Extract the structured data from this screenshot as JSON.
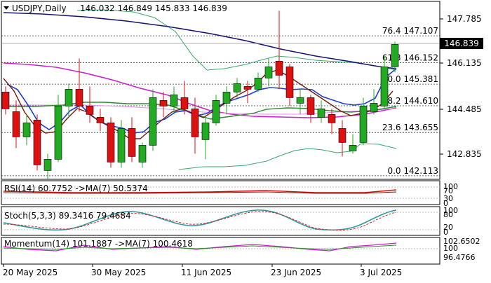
{
  "header": {
    "symbol": "USDJPY,Daily",
    "values": "146.032 146.849 145.833 146.839"
  },
  "price_axis": {
    "ticks": [
      "147.785",
      "146.135",
      "144.485",
      "142.835"
    ],
    "current_price": "146.839"
  },
  "fib_levels": [
    {
      "label": "76.4 147.107",
      "value": 147.107
    },
    {
      "label": "61.8 146.152",
      "value": 146.152
    },
    {
      "label": "50.0 145.381",
      "value": 145.381
    },
    {
      "label": "38.2 144.610",
      "value": 144.61
    },
    {
      "label": "23.6 143.655",
      "value": 143.655
    },
    {
      "label": "0.0 142.113",
      "value": 142.113
    }
  ],
  "date_axis": {
    "labels": [
      "20 May 2025",
      "30 May 2025",
      "11 Jun 2025",
      "23 Jun 2025",
      "3 Jul 2025"
    ]
  },
  "panels": {
    "rsi": {
      "label": "RSI(14) 60.7752  ->MA(7) 50.5374",
      "ticks": [
        "100",
        "70",
        "30",
        "0"
      ]
    },
    "stoch": {
      "label": "Stoch(5,3,3) 89.3416 79.4684",
      "ticks": [
        "100",
        "80",
        "20",
        "0"
      ]
    },
    "momentum": {
      "label": "Momentum(14) 101.1887  ->MA(7) 100.4618",
      "ticks": [
        "102.6502",
        "100",
        "96.4766"
      ]
    }
  },
  "colors": {
    "bull": "#22aa22",
    "bear": "#dd1111",
    "sma_fast": "#1f3fcf",
    "sma_dark": "#7a1a0a",
    "sma_mid": "#2e8b2e",
    "sma_magenta": "#cc22cc",
    "sma_navy": "#151570",
    "bollinger": "#3aa86a",
    "fib": "#333333"
  },
  "chart_data": {
    "type": "candlestick",
    "title": "USDJPY,Daily",
    "ylim": [
      142.11,
      148.2
    ],
    "candles": [
      {
        "o": 145.1,
        "h": 145.3,
        "l": 144.3,
        "c": 144.5
      },
      {
        "o": 144.4,
        "h": 144.8,
        "l": 143.1,
        "c": 143.5
      },
      {
        "o": 143.5,
        "h": 144.3,
        "l": 143.2,
        "c": 144.0
      },
      {
        "o": 144.1,
        "h": 144.3,
        "l": 142.3,
        "c": 142.5
      },
      {
        "o": 142.3,
        "h": 142.9,
        "l": 142.0,
        "c": 142.7
      },
      {
        "o": 142.7,
        "h": 145.0,
        "l": 142.6,
        "c": 144.6
      },
      {
        "o": 144.6,
        "h": 145.4,
        "l": 144.2,
        "c": 145.2
      },
      {
        "o": 145.2,
        "h": 146.3,
        "l": 144.4,
        "c": 144.6
      },
      {
        "o": 144.6,
        "h": 145.3,
        "l": 144.0,
        "c": 144.3
      },
      {
        "o": 144.2,
        "h": 144.5,
        "l": 143.7,
        "c": 144.0
      },
      {
        "o": 144.0,
        "h": 144.2,
        "l": 142.4,
        "c": 142.6
      },
      {
        "o": 142.6,
        "h": 144.1,
        "l": 142.4,
        "c": 143.8
      },
      {
        "o": 143.8,
        "h": 144.2,
        "l": 142.6,
        "c": 142.8
      },
      {
        "o": 142.6,
        "h": 143.3,
        "l": 142.4,
        "c": 143.2
      },
      {
        "o": 143.2,
        "h": 145.2,
        "l": 143.0,
        "c": 144.9
      },
      {
        "o": 144.8,
        "h": 145.1,
        "l": 144.2,
        "c": 144.6
      },
      {
        "o": 144.6,
        "h": 145.3,
        "l": 144.3,
        "c": 145.0
      },
      {
        "o": 144.9,
        "h": 145.5,
        "l": 144.3,
        "c": 144.5
      },
      {
        "o": 144.5,
        "h": 144.9,
        "l": 142.9,
        "c": 143.5
      },
      {
        "o": 143.4,
        "h": 144.2,
        "l": 142.7,
        "c": 144.0
      },
      {
        "o": 144.0,
        "h": 145.0,
        "l": 143.9,
        "c": 144.8
      },
      {
        "o": 144.7,
        "h": 145.3,
        "l": 144.3,
        "c": 145.1
      },
      {
        "o": 145.1,
        "h": 145.6,
        "l": 144.9,
        "c": 145.4
      },
      {
        "o": 145.3,
        "h": 145.5,
        "l": 144.7,
        "c": 145.2
      },
      {
        "o": 145.2,
        "h": 145.8,
        "l": 145.1,
        "c": 145.6
      },
      {
        "o": 145.6,
        "h": 146.3,
        "l": 145.3,
        "c": 146.0
      },
      {
        "o": 146.2,
        "h": 148.0,
        "l": 145.2,
        "c": 145.7
      },
      {
        "o": 146.0,
        "h": 146.1,
        "l": 144.6,
        "c": 144.9
      },
      {
        "o": 144.7,
        "h": 145.2,
        "l": 144.3,
        "c": 144.9
      },
      {
        "o": 144.9,
        "h": 145.0,
        "l": 144.0,
        "c": 144.3
      },
      {
        "o": 144.2,
        "h": 144.8,
        "l": 144.0,
        "c": 144.5
      },
      {
        "o": 144.3,
        "h": 144.5,
        "l": 143.6,
        "c": 144.0
      },
      {
        "o": 143.8,
        "h": 144.1,
        "l": 142.8,
        "c": 143.3
      },
      {
        "o": 143.0,
        "h": 143.6,
        "l": 142.9,
        "c": 143.2
      },
      {
        "o": 143.3,
        "h": 144.9,
        "l": 143.2,
        "c": 144.6
      },
      {
        "o": 144.4,
        "h": 145.2,
        "l": 144.3,
        "c": 144.7
      },
      {
        "o": 144.6,
        "h": 146.4,
        "l": 144.5,
        "c": 146.0
      },
      {
        "o": 146.0,
        "h": 146.9,
        "l": 145.8,
        "c": 146.8
      }
    ],
    "indicators": {
      "rsi": {
        "value": 60.7752,
        "ma7": 50.5374
      },
      "stoch": {
        "k": 89.3416,
        "d": 79.4684
      },
      "momentum": {
        "value": 101.1887,
        "ma7": 100.4618
      }
    }
  }
}
